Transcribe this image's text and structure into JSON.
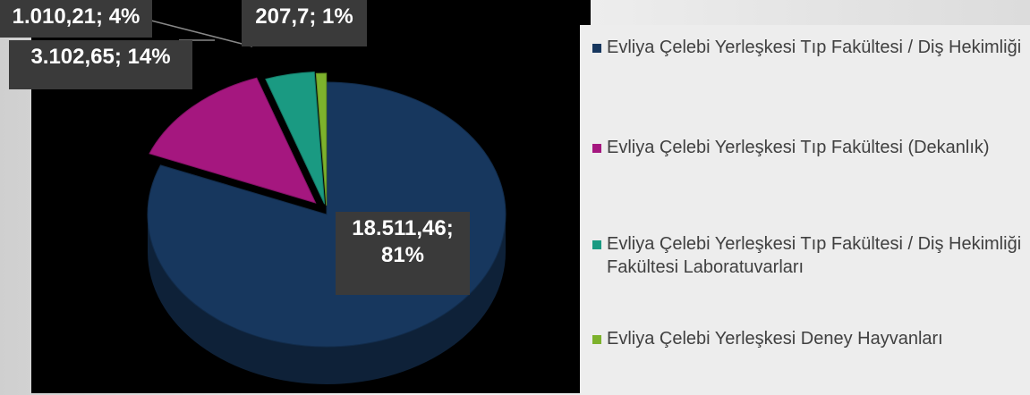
{
  "chart_data": {
    "type": "pie",
    "categories": [
      "Evliya Çelebi Yerleşkesi Tıp Fakültesi / Diş Hekimliği",
      "Evliya Çelebi Yerleşkesi Tıp Fakültesi (Dekanlık)",
      "Evliya Çelebi Yerleşkesi Tıp Fakültesi / Diş Hekimliği Fakültesi Laboratuvarları",
      "Evliya Çelebi Yerleşkesi Deney Hayvanları"
    ],
    "values": [
      18511.46,
      3102.65,
      1010.21,
      207.7
    ],
    "value_labels": [
      "18.511,46; 81%",
      "3.102,65; 14%",
      "1.010,21; 4%",
      "207,7; 1%"
    ],
    "colors": [
      "#17375e",
      "#a5177f",
      "#1a9a82",
      "#7db22c"
    ],
    "legend": "right"
  }
}
